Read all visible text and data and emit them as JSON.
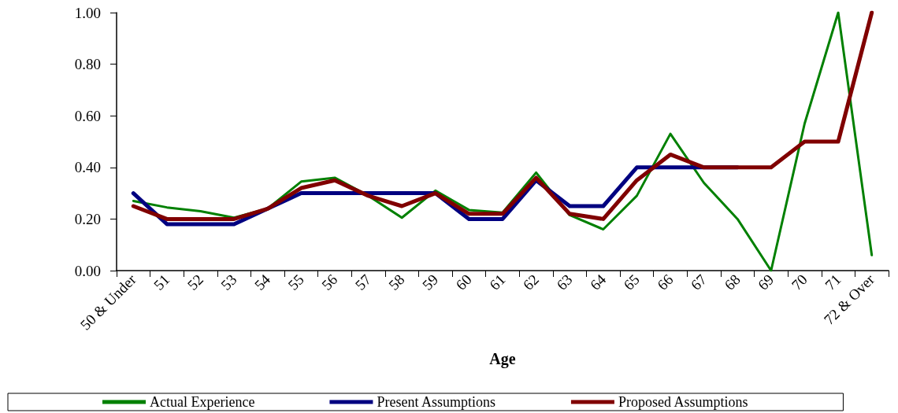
{
  "chart_data": {
    "type": "line",
    "xlabel": "Age",
    "categories": [
      "50 & Under",
      "51",
      "52",
      "53",
      "54",
      "55",
      "56",
      "57",
      "58",
      "59",
      "60",
      "61",
      "62",
      "63",
      "64",
      "65",
      "66",
      "67",
      "68",
      "69",
      "70",
      "71",
      "72 & Over"
    ],
    "series": [
      {
        "name": "Actual Experience",
        "color": "#008000",
        "values": [
          0.27,
          0.245,
          0.23,
          0.205,
          0.24,
          0.345,
          0.36,
          0.29,
          0.205,
          0.31,
          0.235,
          0.225,
          0.38,
          0.215,
          0.16,
          0.29,
          0.53,
          0.34,
          0.2,
          0.0,
          0.57,
          1.0,
          0.06
        ]
      },
      {
        "name": "Present Assumptions",
        "color": "#000080",
        "values": [
          0.3,
          0.18,
          0.18,
          0.18,
          0.24,
          0.3,
          0.3,
          0.3,
          0.3,
          0.3,
          0.2,
          0.2,
          0.35,
          0.25,
          0.25,
          0.4,
          0.4,
          0.4,
          0.4,
          null,
          null,
          null,
          null
        ]
      },
      {
        "name": "Proposed Assumptions",
        "color": "#800000",
        "values": [
          0.25,
          0.2,
          0.2,
          0.2,
          0.24,
          0.32,
          0.35,
          0.29,
          0.25,
          0.3,
          0.22,
          0.22,
          0.36,
          0.22,
          0.2,
          0.35,
          0.45,
          0.4,
          0.4,
          0.4,
          0.5,
          0.5,
          1.0
        ]
      }
    ],
    "ylim": [
      0,
      1
    ],
    "yticks": [
      {
        "value": 0,
        "label": "0.00"
      },
      {
        "value": 0.2,
        "label": "0.20"
      },
      {
        "value": 0.4,
        "label": "0.40"
      },
      {
        "value": 0.6,
        "label": "0.60"
      },
      {
        "value": 0.8,
        "label": "0.80"
      },
      {
        "value": 1,
        "label": "1.00"
      }
    ],
    "grid": false,
    "legend": "bottom",
    "marker": "none",
    "line_style": "solid"
  }
}
